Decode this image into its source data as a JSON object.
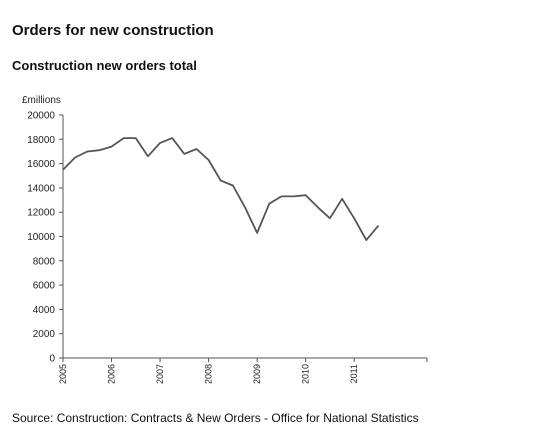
{
  "header": {
    "title": "Orders for new construction"
  },
  "chart_data": {
    "type": "line",
    "title": "Construction new orders total",
    "ylabel": "£millions",
    "xlabel": "",
    "ylim": [
      0,
      20000
    ],
    "yticks": [
      0,
      2000,
      4000,
      6000,
      8000,
      10000,
      12000,
      14000,
      16000,
      18000,
      20000
    ],
    "xticks": [
      "2005",
      "2006",
      "2007",
      "2008",
      "2009",
      "2010",
      "2011"
    ],
    "grid": false,
    "series": [
      {
        "x": [
          "2005 Q1",
          "2005 Q2",
          "2005 Q3",
          "2005 Q4",
          "2006 Q1",
          "2006 Q2",
          "2006 Q3",
          "2006 Q4",
          "2007 Q1",
          "2007 Q2",
          "2007 Q3",
          "2007 Q4",
          "2008 Q1",
          "2008 Q2",
          "2008 Q3",
          "2008 Q4",
          "2009 Q1",
          "2009 Q2",
          "2009 Q3",
          "2009 Q4",
          "2010 Q1",
          "2010 Q2",
          "2010 Q3",
          "2010 Q4",
          "2011 Q1",
          "2011 Q2",
          "2011 Q3"
        ],
        "values": [
          15500,
          16500,
          17000,
          17100,
          17400,
          18100,
          18100,
          16600,
          17700,
          18100,
          16800,
          17200,
          16300,
          14600,
          14200,
          12400,
          10300,
          12700,
          13300,
          13300,
          13400,
          12400,
          11500,
          13100,
          11500,
          9700,
          10900
        ],
        "color": "#555555"
      }
    ]
  },
  "footer": {
    "source": "Source: Construction: Contracts & New Orders - Office for National Statistics"
  }
}
